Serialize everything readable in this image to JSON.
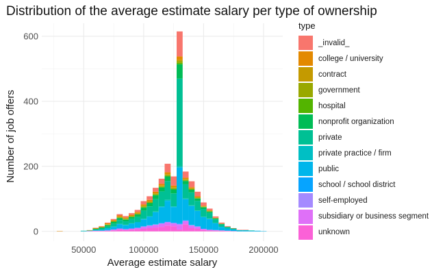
{
  "chart_data": {
    "type": "bar",
    "subtype": "stacked-histogram",
    "title": "Distribution of the average estimate salary per type of ownership",
    "xlabel": "Average estimate salary",
    "ylabel": "Number of job offers",
    "legend_title": "type",
    "legend_position": "right",
    "grid": true,
    "xlim": [
      15000,
      216000
    ],
    "ylim": [
      -30,
      640
    ],
    "x_ticks": [
      50000,
      100000,
      150000,
      200000
    ],
    "x_tick_labels": [
      "50000",
      "100000",
      "150000",
      "200000"
    ],
    "y_ticks": [
      0,
      200,
      400,
      600
    ],
    "y_tick_labels": [
      "0",
      "200",
      "400",
      "600"
    ],
    "bin_width": 5000,
    "x": [
      25000,
      30000,
      35000,
      40000,
      45000,
      50000,
      55000,
      60000,
      65000,
      70000,
      75000,
      80000,
      85000,
      90000,
      95000,
      100000,
      105000,
      110000,
      115000,
      120000,
      125000,
      130000,
      135000,
      140000,
      145000,
      150000,
      155000,
      160000,
      165000,
      170000,
      175000,
      180000,
      185000,
      190000,
      195000,
      200000,
      205000,
      210000
    ],
    "series": [
      {
        "name": "_invalid_",
        "color": "#F8766D",
        "values": [
          0,
          0,
          0,
          0,
          0,
          0,
          0,
          1,
          1,
          2,
          3,
          4,
          4,
          5,
          6,
          10,
          11,
          12,
          16,
          26,
          28,
          77,
          19,
          18,
          14,
          10,
          5,
          4,
          3,
          2,
          1,
          1,
          1,
          0,
          0,
          0,
          0,
          0
        ]
      },
      {
        "name": "college / university",
        "color": "#E38900",
        "values": [
          0,
          1,
          0,
          0,
          0,
          0,
          1,
          1,
          2,
          3,
          3,
          4,
          3,
          3,
          3,
          4,
          5,
          5,
          5,
          6,
          5,
          10,
          4,
          3,
          3,
          2,
          2,
          1,
          1,
          0,
          0,
          0,
          0,
          0,
          0,
          0,
          0,
          0
        ]
      },
      {
        "name": "contract",
        "color": "#C49A00",
        "values": [
          0,
          0,
          0,
          0,
          0,
          0,
          0,
          1,
          0,
          1,
          1,
          1,
          1,
          1,
          2,
          2,
          2,
          2,
          2,
          2,
          3,
          4,
          2,
          2,
          1,
          1,
          1,
          1,
          0,
          0,
          0,
          0,
          0,
          0,
          0,
          0,
          0,
          0
        ]
      },
      {
        "name": "government",
        "color": "#99A800",
        "values": [
          0,
          0,
          0,
          0,
          0,
          0,
          0,
          0,
          1,
          1,
          1,
          2,
          2,
          2,
          2,
          3,
          2,
          2,
          2,
          3,
          2,
          6,
          2,
          2,
          2,
          1,
          1,
          0,
          0,
          0,
          0,
          0,
          0,
          0,
          0,
          0,
          0,
          0
        ]
      },
      {
        "name": "hospital",
        "color": "#53B400",
        "values": [
          0,
          0,
          0,
          0,
          0,
          0,
          0,
          0,
          0,
          1,
          1,
          1,
          1,
          1,
          1,
          1,
          1,
          2,
          2,
          2,
          2,
          4,
          2,
          1,
          1,
          1,
          0,
          0,
          0,
          0,
          0,
          0,
          0,
          0,
          0,
          0,
          0,
          0
        ]
      },
      {
        "name": "nonprofit organization",
        "color": "#00BC56",
        "values": [
          0,
          0,
          0,
          0,
          0,
          0,
          0,
          2,
          3,
          4,
          5,
          6,
          5,
          6,
          7,
          9,
          10,
          12,
          12,
          14,
          12,
          44,
          10,
          8,
          7,
          5,
          4,
          3,
          2,
          1,
          1,
          0,
          0,
          0,
          0,
          0,
          0,
          0
        ]
      },
      {
        "name": "private",
        "color": "#00C094",
        "values": [
          0,
          0,
          0,
          0,
          0,
          1,
          1,
          2,
          4,
          5,
          9,
          12,
          11,
          13,
          16,
          25,
          30,
          38,
          46,
          58,
          40,
          270,
          44,
          40,
          30,
          24,
          18,
          11,
          7,
          4,
          2,
          1,
          1,
          1,
          0,
          0,
          0,
          0
        ]
      },
      {
        "name": "private practice / firm",
        "color": "#00BFC4",
        "values": [
          0,
          0,
          0,
          0,
          0,
          0,
          0,
          0,
          0,
          1,
          1,
          1,
          1,
          1,
          1,
          2,
          2,
          2,
          2,
          3,
          2,
          4,
          2,
          2,
          1,
          1,
          1,
          1,
          0,
          0,
          0,
          0,
          0,
          0,
          0,
          0,
          0,
          0
        ]
      },
      {
        "name": "public",
        "color": "#00B6EB",
        "values": [
          0,
          0,
          0,
          0,
          0,
          1,
          1,
          2,
          3,
          5,
          7,
          12,
          11,
          14,
          16,
          21,
          26,
          37,
          48,
          63,
          47,
          170,
          64,
          58,
          47,
          35,
          32,
          20,
          11,
          7,
          5,
          3,
          3,
          2,
          2,
          1,
          0,
          0
        ]
      },
      {
        "name": "school / school district",
        "color": "#06A4FF",
        "values": [
          0,
          0,
          0,
          0,
          0,
          0,
          0,
          0,
          0,
          1,
          1,
          1,
          1,
          1,
          1,
          1,
          1,
          1,
          2,
          2,
          2,
          3,
          2,
          1,
          1,
          1,
          1,
          1,
          0,
          0,
          0,
          0,
          0,
          0,
          0,
          0,
          0,
          0
        ]
      },
      {
        "name": "self-employed",
        "color": "#A58AFF",
        "values": [
          0,
          0,
          0,
          0,
          0,
          0,
          0,
          0,
          0,
          0,
          1,
          1,
          1,
          1,
          1,
          1,
          1,
          1,
          2,
          2,
          2,
          3,
          2,
          1,
          1,
          1,
          0,
          0,
          0,
          0,
          0,
          0,
          0,
          0,
          0,
          0,
          0,
          0
        ]
      },
      {
        "name": "subsidiary or business segment",
        "color": "#DF70F8",
        "values": [
          0,
          0,
          0,
          0,
          0,
          0,
          0,
          1,
          1,
          1,
          2,
          3,
          2,
          3,
          4,
          6,
          7,
          8,
          9,
          9,
          8,
          14,
          9,
          8,
          6,
          3,
          2,
          2,
          1,
          1,
          0,
          0,
          0,
          0,
          0,
          0,
          0,
          0
        ]
      },
      {
        "name": "unknown",
        "color": "#FB61D7",
        "values": [
          0,
          0,
          0,
          0,
          0,
          0,
          1,
          1,
          1,
          2,
          3,
          5,
          4,
          5,
          6,
          8,
          10,
          12,
          14,
          18,
          16,
          6,
          22,
          10,
          8,
          4,
          3,
          2,
          2,
          1,
          1,
          0,
          0,
          0,
          0,
          0,
          0,
          0
        ]
      }
    ]
  }
}
